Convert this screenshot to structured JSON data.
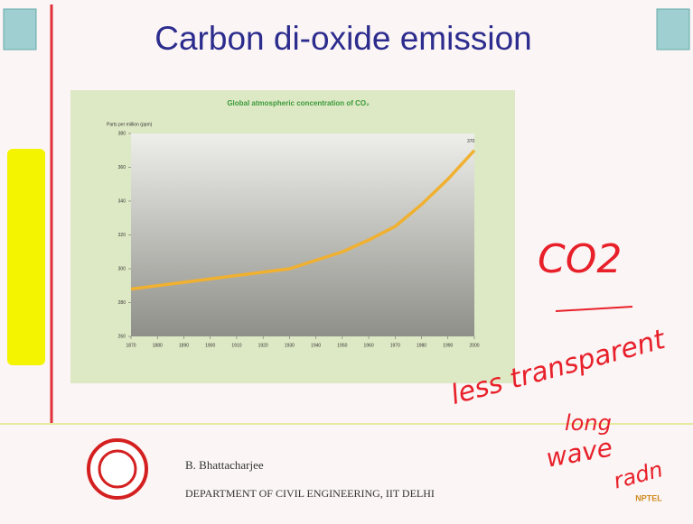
{
  "slide": {
    "title": "Carbon di-oxide emission"
  },
  "chart_data": {
    "type": "line",
    "title": "Global atmospheric concentration of CO₂",
    "ylabel": "Parts per million (ppm)",
    "x": [
      1870,
      1880,
      1890,
      1900,
      1910,
      1920,
      1930,
      1940,
      1950,
      1960,
      1970,
      1980,
      1990,
      2000
    ],
    "values": [
      288,
      290,
      292,
      294,
      296,
      298,
      300,
      305,
      310,
      317,
      325,
      338,
      353,
      370
    ],
    "color": "#f0b030",
    "xlim": [
      1870,
      2000
    ],
    "ylim": [
      260,
      380
    ],
    "xticks": [
      1870,
      1880,
      1890,
      1900,
      1910,
      1920,
      1930,
      1940,
      1950,
      1960,
      1970,
      1980,
      1990,
      2000
    ],
    "yticks": [
      260,
      280,
      300,
      320,
      340,
      360,
      380
    ],
    "end_label": "370"
  },
  "footer": {
    "name": "B. Bhattacharjee",
    "department": "DEPARTMENT OF CIVIL ENGINEERING, IIT DELHI",
    "logo_text": "NPTEL"
  },
  "handwriting": [
    "CO2",
    "less transparent",
    "long",
    "wave",
    "radn"
  ]
}
